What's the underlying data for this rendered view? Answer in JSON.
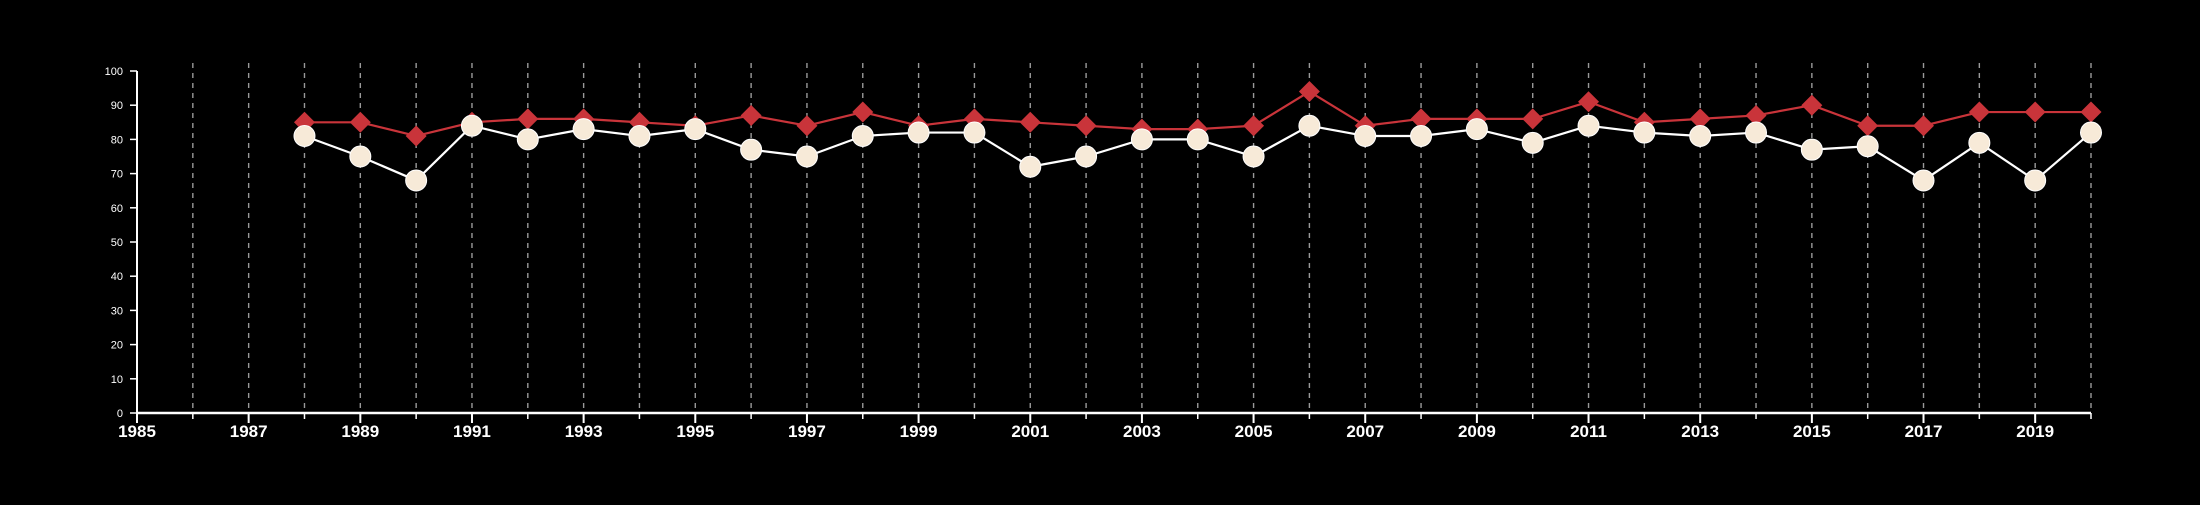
{
  "chart_data": {
    "type": "line",
    "title": "",
    "xlabel": "",
    "ylabel": "",
    "xlim": [
      1985,
      2020
    ],
    "ylim": [
      0,
      100
    ],
    "x_ticks": [
      1985,
      1987,
      1989,
      1991,
      1993,
      1995,
      1997,
      1999,
      2001,
      2003,
      2005,
      2007,
      2009,
      2011,
      2013,
      2015,
      2017,
      2019
    ],
    "y_ticks": [
      0,
      10,
      20,
      30,
      40,
      50,
      60,
      70,
      80,
      90,
      100
    ],
    "vertical_grid": "dashed, one line per year",
    "legend": "none",
    "x": [
      1988,
      1989,
      1990,
      1991,
      1992,
      1993,
      1994,
      1995,
      1996,
      1997,
      1998,
      1999,
      2000,
      2001,
      2002,
      2003,
      2004,
      2005,
      2006,
      2007,
      2008,
      2009,
      2010,
      2011,
      2012,
      2013,
      2014,
      2015,
      2016,
      2017,
      2018,
      2019,
      2020
    ],
    "series": [
      {
        "marker": "diamond",
        "color": "#c9343a",
        "values": [
          85,
          85,
          81,
          85,
          86,
          86,
          85,
          84,
          87,
          84,
          88,
          84,
          86,
          85,
          84,
          83,
          83,
          84,
          94,
          84,
          86,
          86,
          86,
          91,
          85,
          86,
          87,
          90,
          84,
          84,
          88,
          88,
          88
        ]
      },
      {
        "marker": "circle",
        "color": "#f7ead8",
        "line_color": "#ffffff",
        "values": [
          81,
          75,
          68,
          84,
          80,
          83,
          81,
          83,
          77,
          75,
          81,
          82,
          82,
          72,
          75,
          80,
          80,
          75,
          84,
          81,
          81,
          83,
          79,
          84,
          82,
          81,
          82,
          77,
          78,
          68,
          79,
          68,
          82
        ]
      }
    ]
  }
}
